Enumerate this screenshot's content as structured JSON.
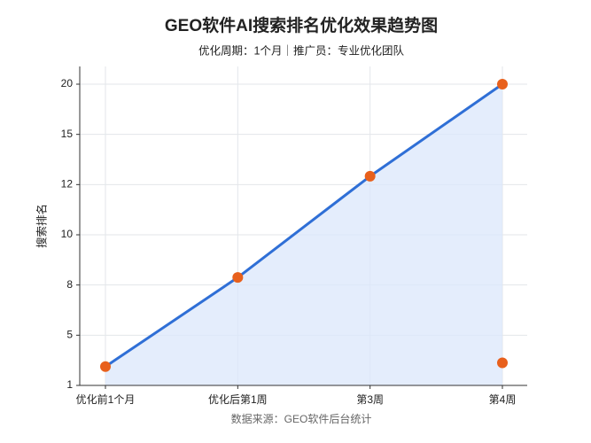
{
  "chart_data": {
    "type": "line",
    "title": "GEO软件AI搜索排名优化效果趋势图",
    "subtitle": "优化周期：1个月｜推广员：专业优化团队",
    "y_label": "搜索排名",
    "source": "数据来源：GEO软件后台统计",
    "categories": [
      "优化前1个月",
      "优化后第1周",
      "第3周",
      "第4周"
    ],
    "series": [
      {
        "color": "#2f6fd6",
        "marker_color": "#e8601c",
        "values": [
          2.5,
          8.3,
          12.5,
          20
        ]
      },
      {
        "color": "#e8601c",
        "marker_color": "#e8601c",
        "values": [
          null,
          null,
          null,
          2.8
        ]
      }
    ],
    "ylim": [
      1,
      20
    ],
    "yticks": [
      1,
      5,
      8,
      10,
      12,
      15,
      20
    ],
    "grid": true,
    "fill_area": true,
    "area_color": "#dbe7fb"
  }
}
